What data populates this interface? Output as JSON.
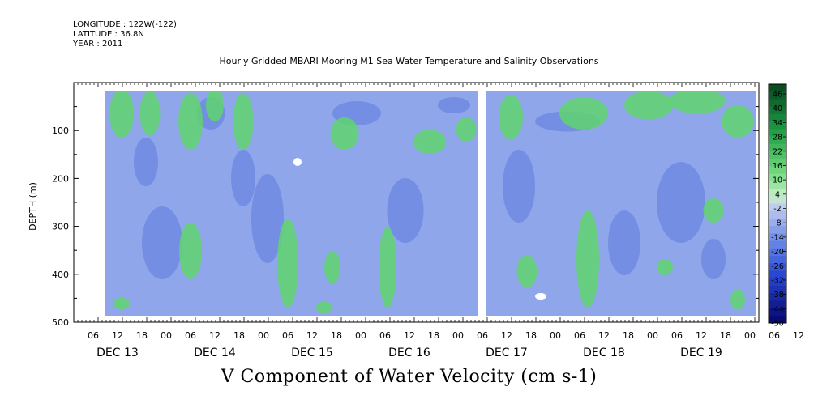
{
  "header": {
    "longitude": "LONGITUDE : 122W(-122)",
    "latitude": "LATITUDE : 36.8N",
    "year": "YEAR : 2011"
  },
  "title": "Hourly Gridded MBARI Mooring M1 Sea Water Temperature and Salinity Observations",
  "footer": "V Component of Water Velocity (cm s-1)",
  "chart_data": {
    "type": "heatmap",
    "title": "Hourly Gridded MBARI Mooring M1 Sea Water Temperature and Salinity Observations",
    "xlabel": "",
    "ylabel": "DEPTH (m)",
    "ylim": [
      500,
      0
    ],
    "y_ticks": [
      100,
      200,
      300,
      400,
      500
    ],
    "x_hour_ticks": [
      "06",
      "12",
      "18",
      "00",
      "06",
      "12",
      "18",
      "00",
      "06",
      "12",
      "18",
      "00",
      "06",
      "12",
      "18",
      "00",
      "06",
      "12",
      "18",
      "00",
      "06",
      "12",
      "18",
      "00",
      "06",
      "12",
      "18",
      "00",
      "06",
      "12",
      "18",
      "00"
    ],
    "x_date_labels": [
      "DEC 13",
      "DEC 14",
      "DEC 15",
      "DEC 16",
      "DEC 17",
      "DEC 18",
      "DEC 19"
    ],
    "colorbar": {
      "label": "V Component of Water Velocity (cm s-1)",
      "tick_labels": [
        "46",
        "40",
        "34",
        "28",
        "22",
        "16",
        "10",
        "4",
        "-2",
        "-8",
        "-14",
        "-20",
        "-26",
        "-32",
        "-38",
        "-44",
        "-50"
      ],
      "min": -50,
      "max": 46
    },
    "data_gap_at": "DEC 17 ~05h"
  }
}
